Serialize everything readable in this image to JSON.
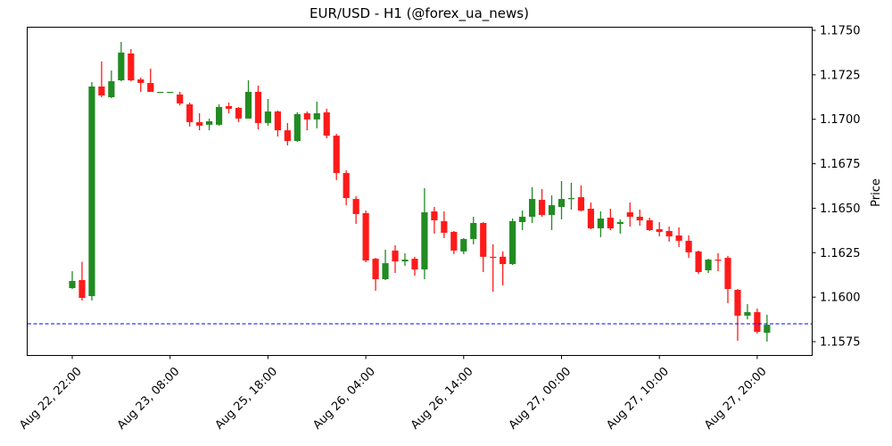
{
  "chart_data": {
    "type": "candlestick",
    "title": "EUR/USD - H1 (@forex_ua_news)",
    "xlabel": "",
    "ylabel": "Price",
    "ylim": [
      1.1566,
      1.1753
    ],
    "y_ticks": [
      "1.1575",
      "1.1600",
      "1.1625",
      "1.1650",
      "1.1675",
      "1.1700",
      "1.1725",
      "1.1750"
    ],
    "x_tick_labels": [
      "Aug 22, 22:00",
      "Aug 23, 08:00",
      "Aug 25, 18:00",
      "Aug 26, 04:00",
      "Aug 26, 14:00",
      "Aug 27, 00:00",
      "Aug 27, 10:00",
      "Aug 27, 20:00"
    ],
    "x_tick_every": 10,
    "grid": false,
    "colors": {
      "up": "#228b22",
      "down": "#ff1a1a",
      "hline": "#0000ff"
    },
    "hline": {
      "value": 1.1585,
      "style": "dashed",
      "color": "#0000ff"
    },
    "ohlc_columns": [
      "open",
      "high",
      "low",
      "close"
    ],
    "candles": [
      [
        1.16051,
        1.16146,
        1.16046,
        1.16091
      ],
      [
        1.16096,
        1.16199,
        1.15981,
        1.15996
      ],
      [
        1.16006,
        1.17209,
        1.15981,
        1.17184
      ],
      [
        1.17184,
        1.17325,
        1.17124,
        1.17134
      ],
      [
        1.17124,
        1.17274,
        1.17119,
        1.17214
      ],
      [
        1.17219,
        1.17435,
        1.17214,
        1.17375
      ],
      [
        1.1737,
        1.17395,
        1.17214,
        1.17219
      ],
      [
        1.17224,
        1.17234,
        1.17154,
        1.17204
      ],
      [
        1.17204,
        1.17284,
        1.17154,
        1.17154
      ],
      [
        1.17154,
        1.17154,
        1.17154,
        1.17154
      ],
      [
        1.17154,
        1.17154,
        1.17154,
        1.17154
      ],
      [
        1.17139,
        1.17154,
        1.17079,
        1.17089
      ],
      [
        1.17084,
        1.17094,
        1.16959,
        1.16984
      ],
      [
        1.16984,
        1.17034,
        1.16938,
        1.16964
      ],
      [
        1.16969,
        1.17004,
        1.16938,
        1.16989
      ],
      [
        1.16969,
        1.17084,
        1.16964,
        1.17069
      ],
      [
        1.17074,
        1.17094,
        1.17034,
        1.17059
      ],
      [
        1.17064,
        1.17069,
        1.16984,
        1.17004
      ],
      [
        1.17004,
        1.17219,
        1.17004,
        1.17154
      ],
      [
        1.17154,
        1.17189,
        1.16943,
        1.16979
      ],
      [
        1.16979,
        1.17114,
        1.16964,
        1.17044
      ],
      [
        1.17044,
        1.17049,
        1.16903,
        1.16938
      ],
      [
        1.16938,
        1.16979,
        1.16853,
        1.16878
      ],
      [
        1.16878,
        1.17039,
        1.16873,
        1.17029
      ],
      [
        1.17034,
        1.17044,
        1.16938,
        1.16999
      ],
      [
        1.16999,
        1.17099,
        1.16949,
        1.17034
      ],
      [
        1.17039,
        1.17059,
        1.16893,
        1.16908
      ],
      [
        1.16908,
        1.16918,
        1.16658,
        1.16698
      ],
      [
        1.16698,
        1.16713,
        1.16517,
        1.16557
      ],
      [
        1.16552,
        1.16567,
        1.16412,
        1.16467
      ],
      [
        1.16472,
        1.16487,
        1.16196,
        1.16206
      ],
      [
        1.16216,
        1.16221,
        1.16036,
        1.16101
      ],
      [
        1.16101,
        1.16267,
        1.16096,
        1.16191
      ],
      [
        1.16262,
        1.16292,
        1.16136,
        1.16201
      ],
      [
        1.16201,
        1.16247,
        1.16176,
        1.16211
      ],
      [
        1.16216,
        1.16227,
        1.16121,
        1.16156
      ],
      [
        1.16156,
        1.16613,
        1.16101,
        1.16477
      ],
      [
        1.16482,
        1.16507,
        1.16357,
        1.16432
      ],
      [
        1.16427,
        1.16482,
        1.16332,
        1.16362
      ],
      [
        1.16367,
        1.16372,
        1.16242,
        1.16262
      ],
      [
        1.16257,
        1.16332,
        1.16242,
        1.16327
      ],
      [
        1.16327,
        1.16452,
        1.16297,
        1.16417
      ],
      [
        1.16417,
        1.16422,
        1.16141,
        1.16227
      ],
      [
        1.16227,
        1.16297,
        1.16031,
        1.16221
      ],
      [
        1.16227,
        1.16257,
        1.16066,
        1.16186
      ],
      [
        1.16186,
        1.16442,
        1.16181,
        1.16427
      ],
      [
        1.16422,
        1.16487,
        1.16377,
        1.16452
      ],
      [
        1.16452,
        1.16618,
        1.16417,
        1.16552
      ],
      [
        1.16547,
        1.16608,
        1.16452,
        1.16462
      ],
      [
        1.16462,
        1.16572,
        1.16377,
        1.16517
      ],
      [
        1.16507,
        1.16653,
        1.16437,
        1.16552
      ],
      [
        1.16552,
        1.16643,
        1.16492,
        1.16557
      ],
      [
        1.16562,
        1.16628,
        1.16482,
        1.16487
      ],
      [
        1.16497,
        1.16532,
        1.16382,
        1.16387
      ],
      [
        1.16387,
        1.16482,
        1.16337,
        1.16442
      ],
      [
        1.16447,
        1.16497,
        1.16377,
        1.16387
      ],
      [
        1.16412,
        1.16437,
        1.16357,
        1.16422
      ],
      [
        1.16477,
        1.16532,
        1.16397,
        1.16452
      ],
      [
        1.16452,
        1.16492,
        1.16402,
        1.16432
      ],
      [
        1.16432,
        1.16447,
        1.16372,
        1.16377
      ],
      [
        1.16382,
        1.16422,
        1.16342,
        1.16367
      ],
      [
        1.16372,
        1.16397,
        1.16312,
        1.16342
      ],
      [
        1.16347,
        1.16392,
        1.16282,
        1.16317
      ],
      [
        1.16317,
        1.16347,
        1.16221,
        1.16252
      ],
      [
        1.16257,
        1.16262,
        1.16131,
        1.16141
      ],
      [
        1.16151,
        1.16216,
        1.16136,
        1.16211
      ],
      [
        1.16211,
        1.16247,
        1.16146,
        1.16206
      ],
      [
        1.16221,
        1.16232,
        1.15966,
        1.16046
      ],
      [
        1.16041,
        1.16046,
        1.15755,
        1.15896
      ],
      [
        1.15896,
        1.15961,
        1.15875,
        1.15916
      ],
      [
        1.15916,
        1.15936,
        1.15795,
        1.15805
      ],
      [
        1.158,
        1.15901,
        1.1575,
        1.15845
      ]
    ]
  }
}
